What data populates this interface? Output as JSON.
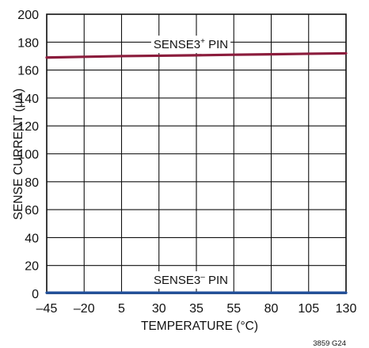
{
  "chart_data": {
    "type": "line",
    "xlabel": "TEMPERATURE (°C)",
    "ylabel": "SENSE CURRENT (µA)",
    "x_categories": [
      "–45",
      "–20",
      "5",
      "30",
      "35",
      "55",
      "80",
      "105",
      "130"
    ],
    "ylim": [
      0,
      200
    ],
    "y_ticks": [
      "0",
      "20",
      "40",
      "60",
      "80",
      "100",
      "120",
      "140",
      "160",
      "180",
      "200"
    ],
    "grid": true,
    "series": [
      {
        "name": "SENSE3+ PIN",
        "label_base": "SENSE3",
        "label_sup": "+",
        "label_suffix": " PIN",
        "color": "#8b1c3c",
        "x": [
          "–45",
          "–20",
          "5",
          "30",
          "35",
          "55",
          "80",
          "105",
          "130"
        ],
        "values": [
          169,
          169.5,
          170,
          170.3,
          170.6,
          171,
          171.3,
          171.7,
          172
        ]
      },
      {
        "name": "SENSE3– PIN",
        "label_base": "SENSE3",
        "label_sup": "–",
        "label_suffix": " PIN",
        "color": "#1f4e9a",
        "x": [
          "–45",
          "–20",
          "5",
          "30",
          "35",
          "55",
          "80",
          "105",
          "130"
        ],
        "values": [
          0.5,
          0.5,
          0.5,
          0.5,
          0.5,
          0.5,
          0.5,
          0.5,
          0.5
        ]
      }
    ],
    "figure_id": "3859 G24"
  }
}
